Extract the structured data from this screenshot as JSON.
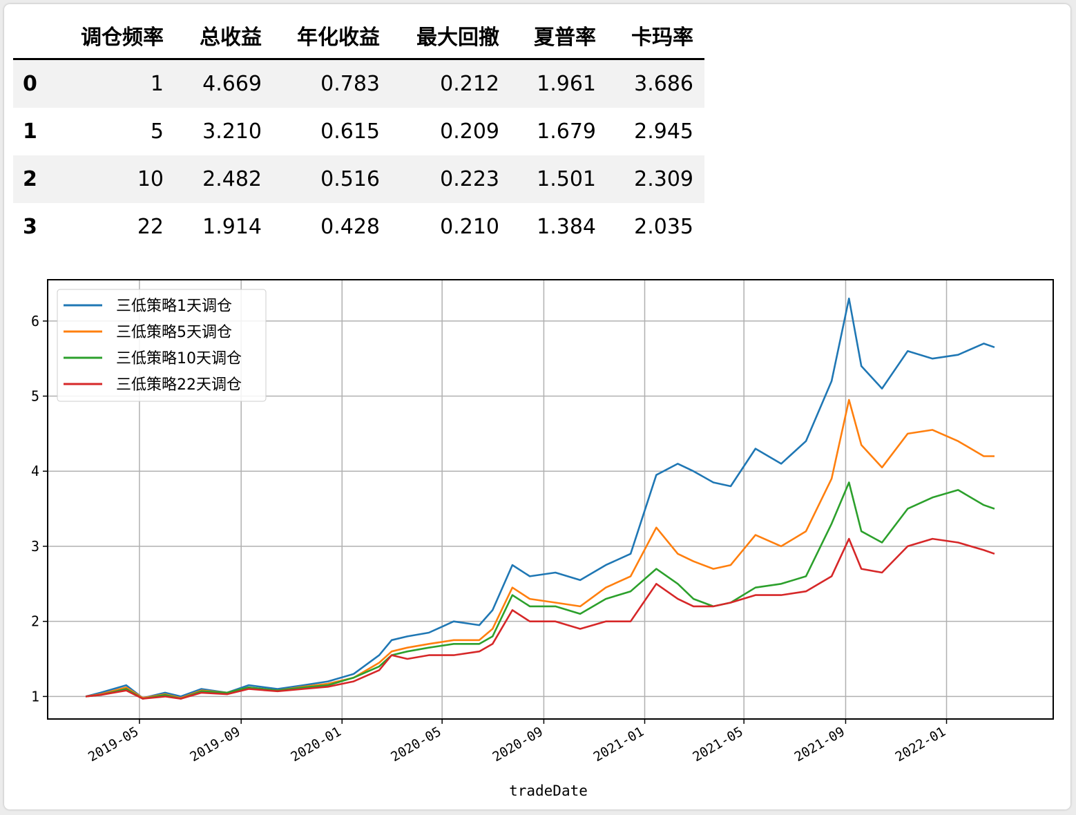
{
  "table": {
    "columns": [
      "",
      "调仓频率",
      "总收益",
      "年化收益",
      "最大回撤",
      "夏普率",
      "卡玛率"
    ],
    "rows": [
      {
        "index": "0",
        "cells": [
          "1",
          "4.669",
          "0.783",
          "0.212",
          "1.961",
          "3.686"
        ]
      },
      {
        "index": "1",
        "cells": [
          "5",
          "3.210",
          "0.615",
          "0.209",
          "1.679",
          "2.945"
        ]
      },
      {
        "index": "2",
        "cells": [
          "10",
          "2.482",
          "0.516",
          "0.223",
          "1.501",
          "2.309"
        ]
      },
      {
        "index": "3",
        "cells": [
          "22",
          "1.914",
          "0.428",
          "0.210",
          "1.384",
          "2.035"
        ]
      }
    ]
  },
  "chart_data": {
    "type": "line",
    "xlabel": "tradeDate",
    "ylabel": "",
    "x_tick_labels": [
      "2019-05",
      "2019-09",
      "2020-01",
      "2020-05",
      "2020-09",
      "2021-01",
      "2021-05",
      "2021-09",
      "2022-01"
    ],
    "x_ticks": [
      "2019-05-01",
      "2019-09-01",
      "2020-01-01",
      "2020-05-01",
      "2020-09-01",
      "2021-01-01",
      "2021-05-01",
      "2021-09-01",
      "2022-01-01"
    ],
    "x_range": [
      "2019-01-10",
      "2022-05-10"
    ],
    "y_ticks": [
      1,
      2,
      3,
      4,
      5,
      6
    ],
    "ylim": [
      0.7,
      6.55
    ],
    "grid": true,
    "legend_position": "upper-left",
    "x": [
      "2019-02-25",
      "2019-03-15",
      "2019-04-15",
      "2019-05-05",
      "2019-06-01",
      "2019-06-20",
      "2019-07-15",
      "2019-08-15",
      "2019-09-10",
      "2019-10-15",
      "2019-11-15",
      "2019-12-15",
      "2020-01-15",
      "2020-02-15",
      "2020-03-01",
      "2020-03-20",
      "2020-04-15",
      "2020-05-15",
      "2020-06-15",
      "2020-07-01",
      "2020-07-25",
      "2020-08-15",
      "2020-09-15",
      "2020-10-15",
      "2020-11-15",
      "2020-12-15",
      "2021-01-15",
      "2021-02-10",
      "2021-03-01",
      "2021-03-25",
      "2021-04-15",
      "2021-05-15",
      "2021-06-15",
      "2021-07-15",
      "2021-08-15",
      "2021-09-05",
      "2021-09-20",
      "2021-10-15",
      "2021-11-15",
      "2021-12-15",
      "2022-01-15",
      "2022-02-15",
      "2022-02-28"
    ],
    "series": [
      {
        "name": "三低策略1天调仓",
        "color": "#1f77b4",
        "values": [
          1.0,
          1.05,
          1.15,
          0.98,
          1.05,
          1.0,
          1.1,
          1.05,
          1.15,
          1.1,
          1.15,
          1.2,
          1.3,
          1.55,
          1.75,
          1.8,
          1.85,
          2.0,
          1.95,
          2.15,
          2.75,
          2.6,
          2.65,
          2.55,
          2.75,
          2.9,
          3.95,
          4.1,
          4.0,
          3.85,
          3.8,
          4.3,
          4.1,
          4.4,
          5.2,
          6.3,
          5.4,
          5.1,
          5.6,
          5.5,
          5.55,
          5.7,
          5.65
        ]
      },
      {
        "name": "三低策略5天调仓",
        "color": "#ff7f0e",
        "values": [
          1.0,
          1.03,
          1.12,
          0.98,
          1.03,
          0.98,
          1.08,
          1.05,
          1.12,
          1.08,
          1.13,
          1.17,
          1.25,
          1.45,
          1.6,
          1.65,
          1.7,
          1.75,
          1.75,
          1.9,
          2.45,
          2.3,
          2.25,
          2.2,
          2.45,
          2.6,
          3.25,
          2.9,
          2.8,
          2.7,
          2.75,
          3.15,
          3.0,
          3.2,
          3.9,
          4.95,
          4.35,
          4.05,
          4.5,
          4.55,
          4.4,
          4.2,
          4.2
        ]
      },
      {
        "name": "三低策略10天调仓",
        "color": "#2ca02c",
        "values": [
          1.0,
          1.02,
          1.1,
          0.97,
          1.02,
          0.97,
          1.07,
          1.05,
          1.12,
          1.08,
          1.12,
          1.15,
          1.25,
          1.4,
          1.55,
          1.6,
          1.65,
          1.7,
          1.7,
          1.8,
          2.35,
          2.2,
          2.2,
          2.1,
          2.3,
          2.4,
          2.7,
          2.5,
          2.3,
          2.2,
          2.25,
          2.45,
          2.5,
          2.6,
          3.3,
          3.85,
          3.2,
          3.05,
          3.5,
          3.65,
          3.75,
          3.55,
          3.5
        ]
      },
      {
        "name": "三低策略22天调仓",
        "color": "#d62728",
        "values": [
          1.0,
          1.02,
          1.08,
          0.97,
          1.0,
          0.97,
          1.05,
          1.03,
          1.1,
          1.07,
          1.1,
          1.13,
          1.2,
          1.35,
          1.55,
          1.5,
          1.55,
          1.55,
          1.6,
          1.7,
          2.15,
          2.0,
          2.0,
          1.9,
          2.0,
          2.0,
          2.5,
          2.3,
          2.2,
          2.2,
          2.25,
          2.35,
          2.35,
          2.4,
          2.6,
          3.1,
          2.7,
          2.65,
          3.0,
          3.1,
          3.05,
          2.95,
          2.9
        ]
      }
    ]
  }
}
